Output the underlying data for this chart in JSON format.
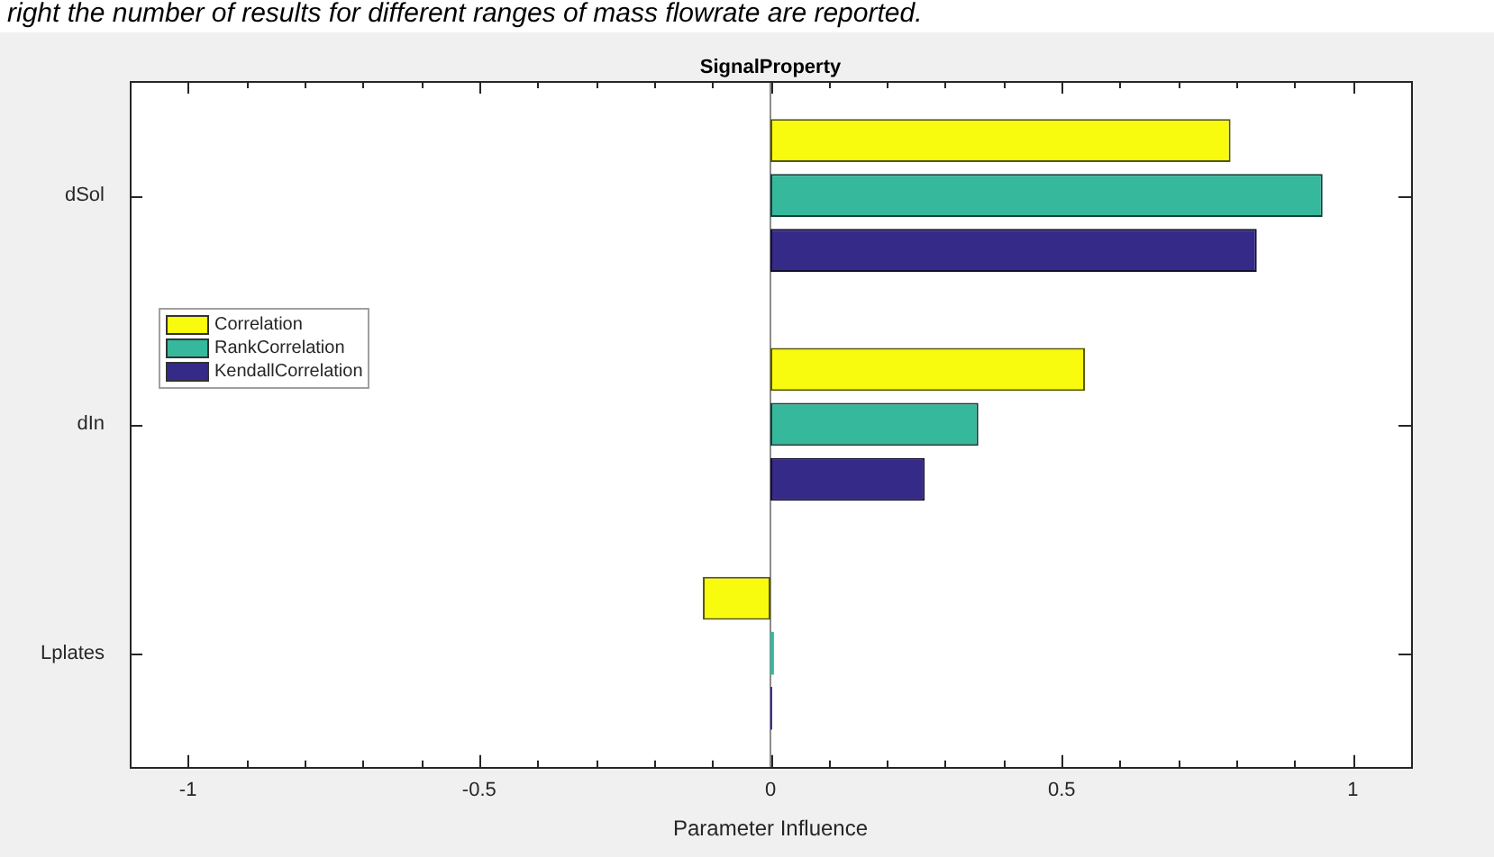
{
  "chart_data": {
    "type": "bar",
    "orientation": "horizontal",
    "title": "SignalProperty",
    "xlabel": "Parameter Influence",
    "annotations": [
      "right the number of results for different ranges of mass flowrate are reported."
    ],
    "categories": [
      "dSol",
      "dIn",
      "Lplates"
    ],
    "series": [
      {
        "name": "Correlation",
        "color": "#f9fb0e",
        "values": [
          0.79,
          0.54,
          -0.116
        ]
      },
      {
        "name": "RankCorrelation",
        "color": "#36b89d",
        "values": [
          0.948,
          0.357,
          0.006
        ]
      },
      {
        "name": "KendallCorrelation",
        "color": "#352a87",
        "values": [
          0.835,
          0.265,
          0.003
        ]
      }
    ],
    "xlim": [
      -1.1,
      1.1
    ],
    "xticks": [
      -1,
      {
        "value": -0.9,
        "label": null
      },
      {
        "value": -0.8,
        "label": null
      },
      {
        "value": -0.7,
        "label": null
      },
      {
        "value": -0.6,
        "label": null
      },
      -0.5,
      {
        "value": -0.4,
        "label": null
      },
      {
        "value": -0.3,
        "label": null
      },
      {
        "value": -0.2,
        "label": null
      },
      {
        "value": -0.1,
        "label": null
      },
      0,
      {
        "value": 0.1,
        "label": null
      },
      {
        "value": 0.2,
        "label": null
      },
      {
        "value": 0.3,
        "label": null
      },
      {
        "value": 0.4,
        "label": null
      },
      0.5,
      {
        "value": 0.6,
        "label": null
      },
      {
        "value": 0.7,
        "label": null
      },
      {
        "value": 0.8,
        "label": null
      },
      {
        "value": 0.9,
        "label": null
      },
      1
    ],
    "ref_lines": [
      {
        "axis": "x",
        "value": 0,
        "color": "#8c8c8c"
      }
    ],
    "legend": "left"
  }
}
